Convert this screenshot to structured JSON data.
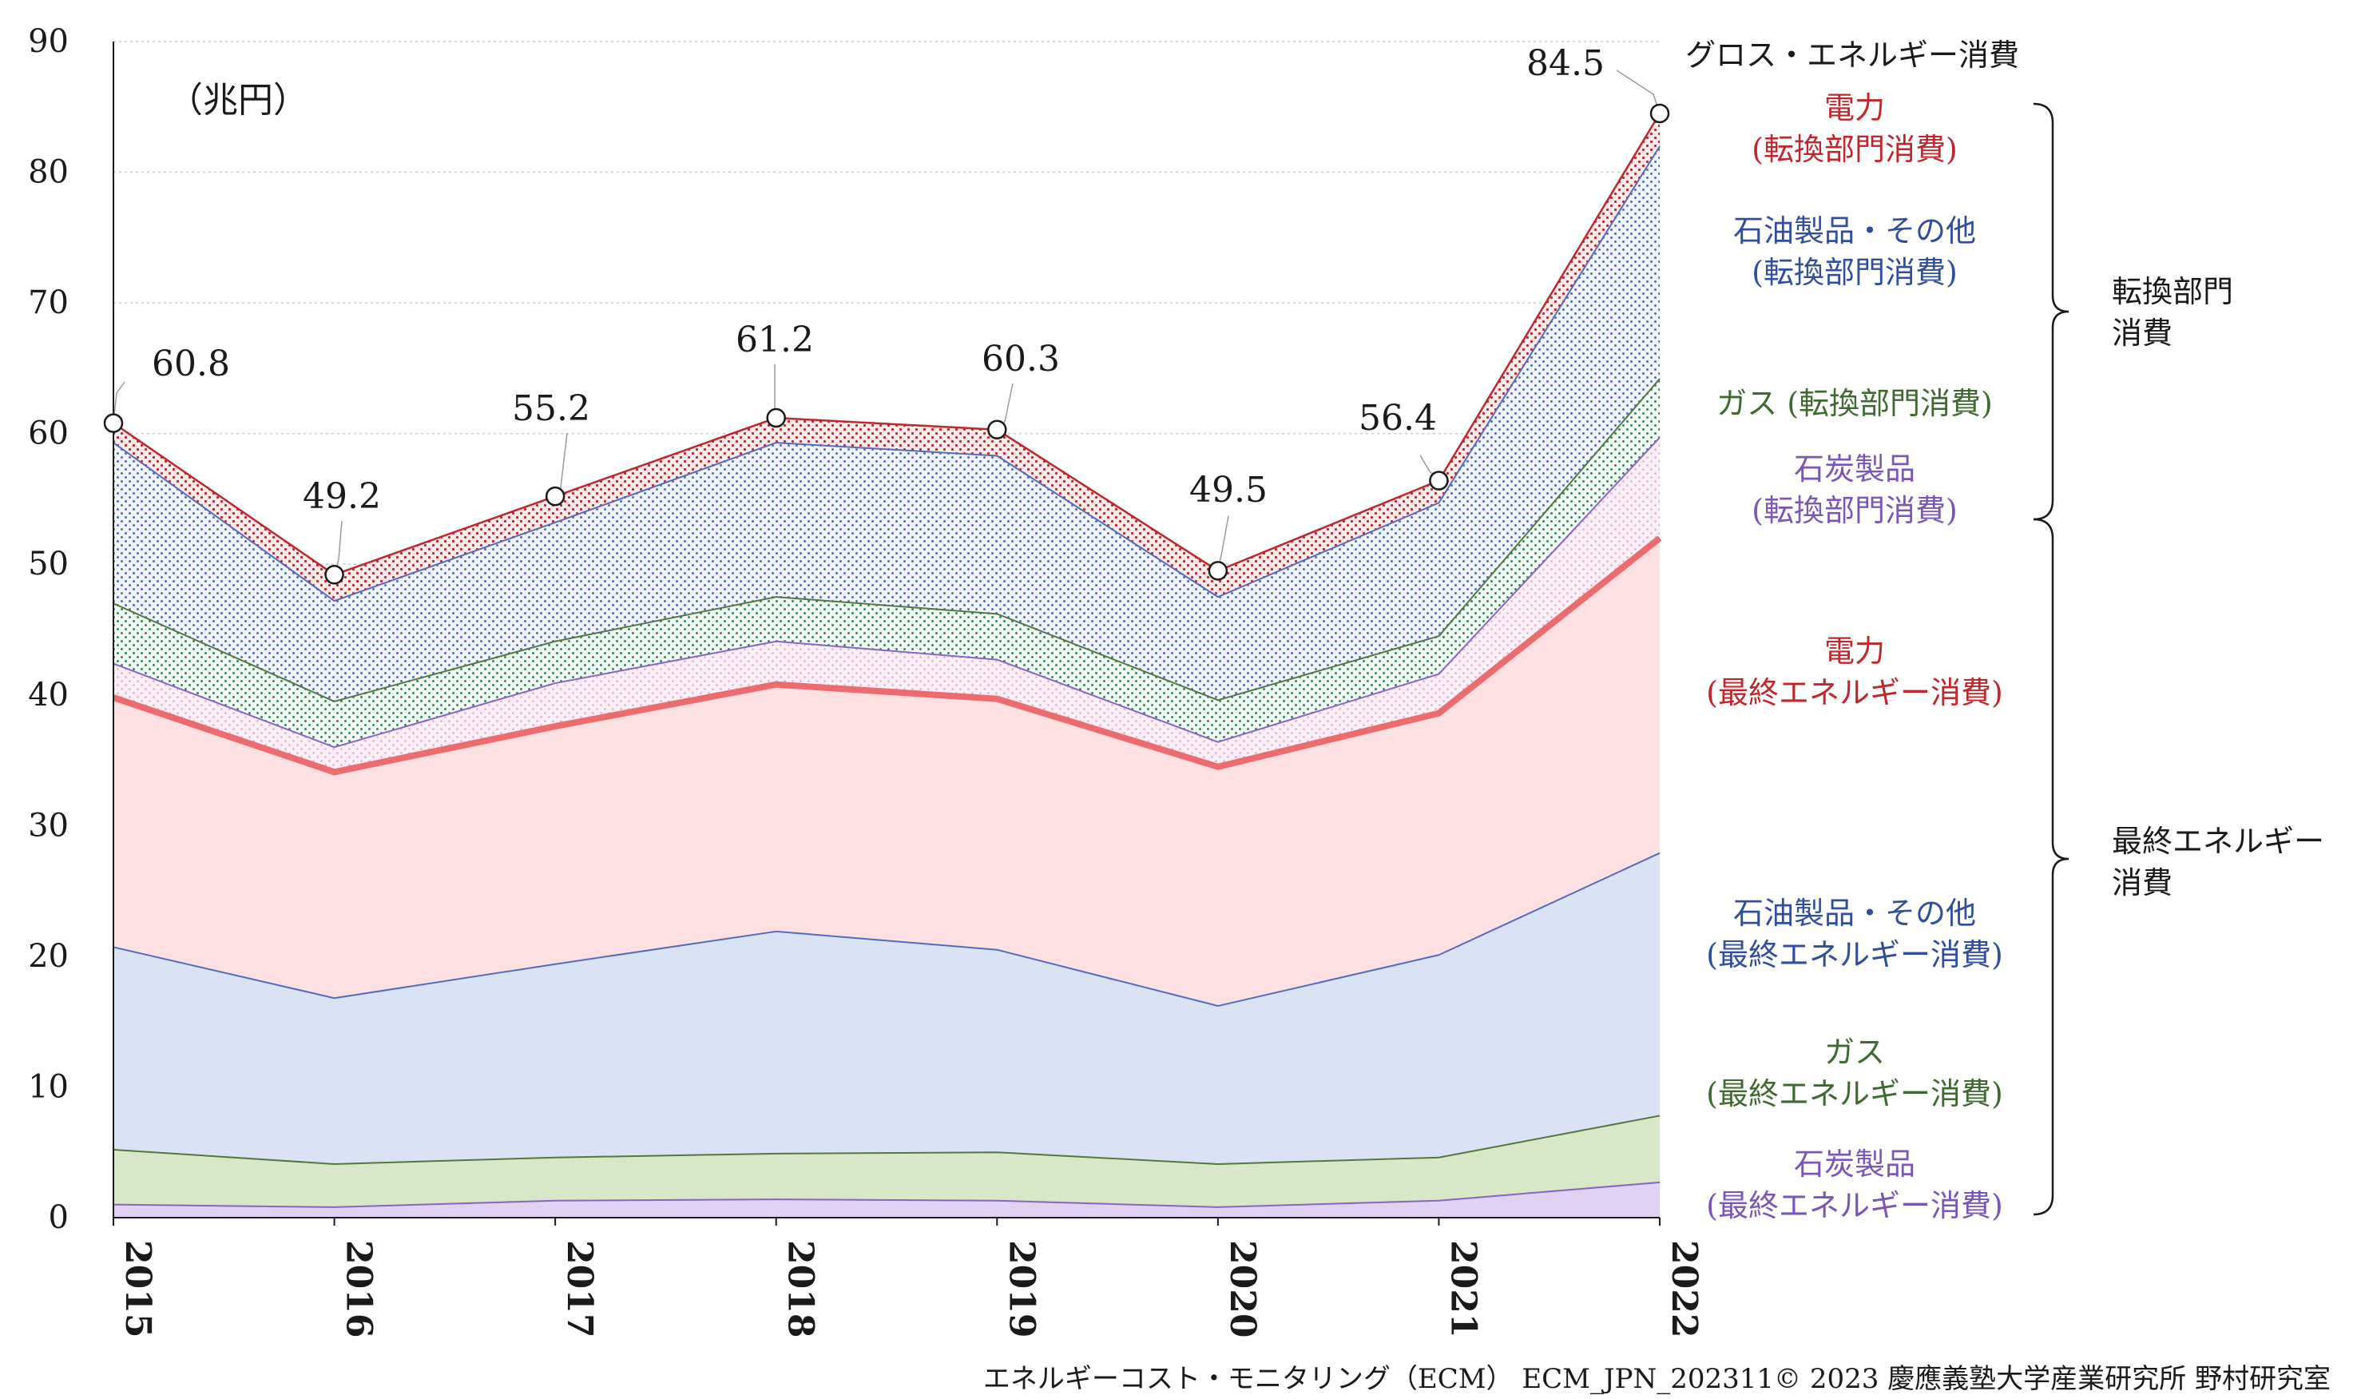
{
  "chart_data": {
    "type": "area",
    "unit_label": "（兆円）",
    "x": [
      "2015",
      "2016",
      "2017",
      "2018",
      "2019",
      "2020",
      "2021",
      "2022"
    ],
    "ylim": [
      0,
      90
    ],
    "yticks": [
      "0",
      "10",
      "20",
      "30",
      "40",
      "50",
      "60",
      "70",
      "80",
      "90"
    ],
    "grid": "horizontal dotted",
    "series": [
      {
        "name": "石炭製品\n(最終エネルギー消費)",
        "key": "coal_final",
        "values": [
          1.0,
          0.8,
          1.3,
          1.4,
          1.3,
          0.8,
          1.3,
          2.7
        ],
        "line": "#8a63c9",
        "fill": "#e1d1f2",
        "pattern": "none"
      },
      {
        "name": "ガス\n(最終エネルギー消費)",
        "key": "gas_final",
        "values": [
          5.2,
          4.1,
          4.6,
          4.9,
          5.0,
          4.1,
          4.6,
          7.8
        ],
        "line": "#4f7a3a",
        "fill": "#d6e8c7",
        "pattern": "none"
      },
      {
        "name": "石油製品・その他\n(最終エネルギー消費)",
        "key": "oil_final",
        "values": [
          20.7,
          16.8,
          19.4,
          21.9,
          20.5,
          16.2,
          20.1,
          27.9
        ],
        "line": "#4f6bc4",
        "fill": "#dae3f4",
        "pattern": "none"
      },
      {
        "name": "電力\n(最終エネルギー消費)",
        "key": "elec_final",
        "values": [
          39.8,
          34.1,
          37.6,
          40.8,
          39.7,
          34.5,
          38.6,
          52.0
        ],
        "line": "#ec6b6d",
        "fill": "#fde0e1",
        "pattern": "none"
      },
      {
        "name": "石炭製品\n(転換部門消費)",
        "key": "coal_conv",
        "values": [
          42.4,
          36.0,
          40.9,
          44.1,
          42.7,
          36.4,
          41.6,
          59.7
        ],
        "line": "#8a63c9",
        "fill": "#fbeff7",
        "pattern": "purple"
      },
      {
        "name": "ガス (転換部門消費)",
        "key": "gas_conv",
        "values": [
          47.0,
          39.5,
          44.1,
          47.5,
          46.2,
          39.6,
          44.5,
          64.2
        ],
        "line": "#4f7a3a",
        "fill": "#f1faf4",
        "pattern": "green"
      },
      {
        "name": "石油製品・その他\n(転換部門消費)",
        "key": "oil_conv",
        "values": [
          59.3,
          47.2,
          53.2,
          59.3,
          58.3,
          47.5,
          54.7,
          82.0
        ],
        "line": "#4f6bc4",
        "fill": "#f1f4fd",
        "pattern": "blue"
      },
      {
        "name": "電力\n(転換部門消費)",
        "key": "elec_conv",
        "values": [
          60.8,
          49.2,
          55.2,
          61.2,
          60.3,
          49.5,
          56.4,
          84.5
        ],
        "line": "#c0262c",
        "fill": "#fbeceb",
        "pattern": "red"
      }
    ],
    "total": {
      "name": "グロス・エネルギー消費",
      "values": [
        60.8,
        49.2,
        55.2,
        61.2,
        60.3,
        49.5,
        56.4,
        84.5
      ],
      "labels": [
        "60.8",
        "49.2",
        "55.2",
        "61.2",
        "60.3",
        "49.5",
        "56.4",
        "84.5"
      ]
    },
    "legend_labels": [
      {
        "text": "グロス・エネルギー消費",
        "color": "#1a1a1a"
      },
      {
        "text": "電力",
        "color": "#c0262c"
      },
      {
        "text": "(転換部門消費)",
        "color": "#c0262c"
      },
      {
        "text": "石油製品・その他",
        "color": "#2f4f9e"
      },
      {
        "text": "(転換部門消費)",
        "color": "#2f4f9e"
      },
      {
        "text": "ガス (転換部門消費)",
        "color": "#3f6a2f"
      },
      {
        "text": "石炭製品",
        "color": "#7b55b8"
      },
      {
        "text": "(転換部門消費)",
        "color": "#7b55b8"
      },
      {
        "text": "電力",
        "color": "#c0262c"
      },
      {
        "text": "(最終エネルギー消費)",
        "color": "#c0262c"
      },
      {
        "text": "石油製品・その他",
        "color": "#2f4f9e"
      },
      {
        "text": "(最終エネルギー消費)",
        "color": "#2f4f9e"
      },
      {
        "text": "ガス",
        "color": "#3f6a2f"
      },
      {
        "text": "(最終エネルギー消費)",
        "color": "#3f6a2f"
      },
      {
        "text": "石炭製品",
        "color": "#7b55b8"
      },
      {
        "text": "(最終エネルギー消費)",
        "color": "#7b55b8"
      }
    ],
    "brackets": [
      {
        "lines": [
          "転換部門",
          "消費"
        ]
      },
      {
        "lines": [
          "最終エネルギー",
          "消費"
        ]
      }
    ],
    "footer": "エネルギーコスト・モニタリング（ECM） ECM_JPN_202311© 2023 慶應義塾大学産業研究所 野村研究室"
  }
}
